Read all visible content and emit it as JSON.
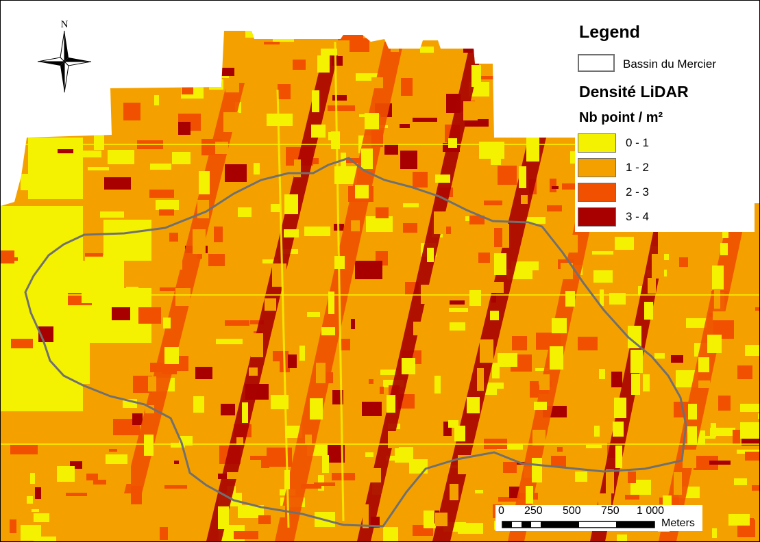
{
  "map": {
    "north_label": "N",
    "legend": {
      "title": "Legend",
      "boundary_label": "Bassin du Mercier",
      "boundary_color": "#707070",
      "raster_title": "Densité LiDAR",
      "raster_subtitle": "Nb point / m²",
      "classes": [
        {
          "label": "0 - 1",
          "color": "#f4f200"
        },
        {
          "label": "1 - 2",
          "color": "#f4a100"
        },
        {
          "label": "2 - 3",
          "color": "#f05000"
        },
        {
          "label": "3 - 4",
          "color": "#a80000"
        }
      ]
    },
    "scale_bar": {
      "ticks": [
        "0",
        "250",
        "500",
        "750",
        "1 000"
      ],
      "units": "Meters"
    }
  }
}
